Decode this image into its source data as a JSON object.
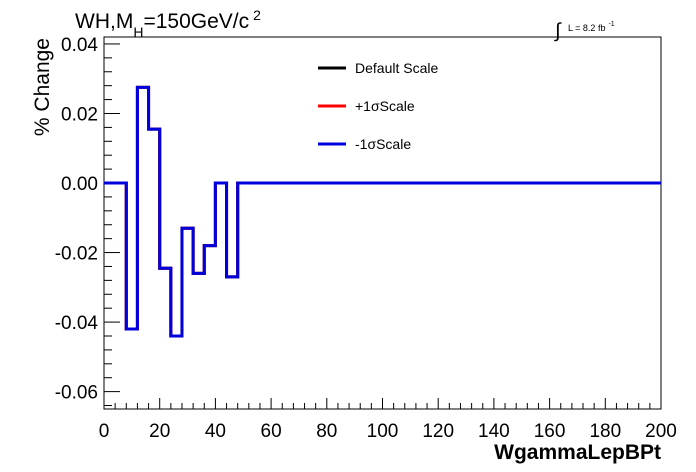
{
  "header": {
    "title_main": "WH,M",
    "title_sub": "H",
    "title_rest": "=150GeV/c",
    "title_sup": "2",
    "lumi_int": "∫",
    "lumi_text": "L = 8.2 fb",
    "lumi_sup": "-1"
  },
  "chart_data": {
    "type": "line",
    "step": true,
    "xlabel": "WgammaLepBPt",
    "ylabel": "% Change",
    "xlim": [
      0,
      200
    ],
    "ylim": [
      -0.065,
      0.042
    ],
    "x_ticks": [
      "0",
      "20",
      "40",
      "60",
      "80",
      "100",
      "120",
      "140",
      "160",
      "180",
      "200"
    ],
    "y_ticks": [
      "-0.06",
      "-0.04",
      "-0.02",
      "0.00",
      "0.02",
      "0.04"
    ],
    "legend_position": "top-center",
    "bin_edges": [
      0,
      8,
      12,
      16,
      20,
      24,
      28,
      32,
      36,
      40,
      44,
      48,
      200
    ],
    "series": [
      {
        "name": "Default Scale",
        "color": "#000000",
        "values": [
          0,
          -0.042,
          0.0275,
          0.0155,
          -0.0245,
          -0.044,
          -0.013,
          -0.026,
          -0.018,
          0.0,
          -0.027,
          0
        ]
      },
      {
        "name": "+1σScale",
        "color": "#ff0000",
        "values": [
          0,
          -0.042,
          0.0275,
          0.0155,
          -0.0245,
          -0.044,
          -0.013,
          -0.026,
          -0.018,
          0.0,
          -0.027,
          0
        ]
      },
      {
        "name": "-1σScale",
        "color": "#0000dd",
        "values": [
          0,
          -0.042,
          0.0275,
          0.0155,
          -0.0245,
          -0.044,
          -0.013,
          -0.026,
          -0.018,
          0.0,
          -0.027,
          0
        ]
      }
    ]
  }
}
